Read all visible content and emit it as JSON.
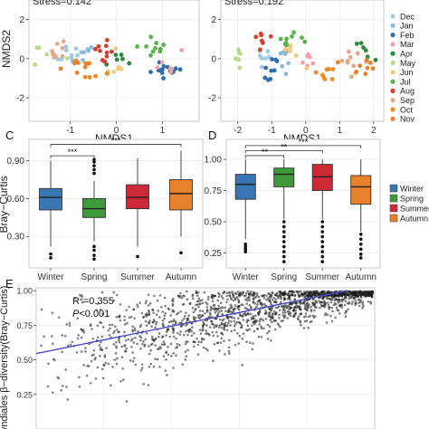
{
  "chart_data": [
    {
      "id": "A",
      "type": "scatter",
      "title": "Stress=0.142",
      "xlabel": "NMDS1",
      "ylabel": "NMDS2",
      "xticks": [
        "-1",
        "0",
        "1"
      ],
      "xtick_values": [
        -1,
        0,
        1
      ],
      "yticks": [
        "2",
        "0",
        "-2"
      ],
      "ytick_values": [
        2,
        0,
        -2
      ],
      "xlim": [
        -1.9,
        1.8
      ],
      "ylim": [
        -3.2,
        3.0
      ],
      "clusters": [
        {
          "month": "Dec",
          "x": -1.05,
          "y": 0.2,
          "n": 8
        },
        {
          "month": "Jan",
          "x": -0.8,
          "y": 0.25,
          "n": 8
        },
        {
          "month": "Feb",
          "x": 1.15,
          "y": -0.45,
          "n": 14
        },
        {
          "month": "Mar",
          "x": 1.05,
          "y": -0.2,
          "n": 6
        },
        {
          "month": "Apr",
          "x": 0.05,
          "y": -0.05,
          "n": 6
        },
        {
          "month": "May",
          "x": -1.45,
          "y": 0.05,
          "n": 5
        },
        {
          "month": "Jun",
          "x": -0.05,
          "y": -0.35,
          "n": 6
        },
        {
          "month": "Jul",
          "x": 0.85,
          "y": 0.6,
          "n": 10
        },
        {
          "month": "Aug",
          "x": -0.3,
          "y": 0.35,
          "n": 10
        },
        {
          "month": "Sep",
          "x": -1.25,
          "y": 0.25,
          "n": 9
        },
        {
          "month": "Oct",
          "x": -0.55,
          "y": -0.45,
          "n": 7
        },
        {
          "month": "Nov",
          "x": -0.85,
          "y": -0.3,
          "n": 7
        }
      ]
    },
    {
      "id": "B",
      "type": "scatter",
      "title": "Stress=0.192",
      "xlabel": "NMDS1",
      "ylabel": "",
      "xticks": [
        "-2",
        "-1",
        "0",
        "1",
        "2"
      ],
      "xtick_values": [
        -2,
        -1,
        0,
        1,
        2
      ],
      "yticks": [
        "2",
        "0",
        "-2"
      ],
      "ytick_values": [
        2,
        0,
        -2
      ],
      "xlim": [
        -2.5,
        2.3
      ],
      "ylim": [
        -3.2,
        3.0
      ],
      "clusters": [
        {
          "month": "Dec",
          "x": -1.3,
          "y": 0.1,
          "n": 7
        },
        {
          "month": "Jan",
          "x": -0.75,
          "y": 0.05,
          "n": 7
        },
        {
          "month": "Feb",
          "x": -1.05,
          "y": -0.65,
          "n": 9
        },
        {
          "month": "Mar",
          "x": 0.1,
          "y": -0.2,
          "n": 6
        },
        {
          "month": "Apr",
          "x": 1.7,
          "y": 0.35,
          "n": 6
        },
        {
          "month": "May",
          "x": -1.9,
          "y": 0.2,
          "n": 7
        },
        {
          "month": "Jun",
          "x": -0.35,
          "y": 0.35,
          "n": 6
        },
        {
          "month": "Jul",
          "x": -0.45,
          "y": 1.05,
          "n": 9
        },
        {
          "month": "Aug",
          "x": -1.35,
          "y": 0.85,
          "n": 8
        },
        {
          "month": "Sep",
          "x": 1.4,
          "y": -0.1,
          "n": 10
        },
        {
          "month": "Oct",
          "x": 0.55,
          "y": -0.55,
          "n": 9
        },
        {
          "month": "Nov",
          "x": 1.75,
          "y": -0.3,
          "n": 7
        }
      ]
    },
    {
      "id": "C",
      "type": "box",
      "ylabel": "Bray−Curtis",
      "categories": [
        "Winter",
        "Spring",
        "Summer",
        "Autumn"
      ],
      "yticks": [
        "0.90",
        "0.60",
        "0.30"
      ],
      "ytick_values": [
        0.9,
        0.6,
        0.3
      ],
      "ylim": [
        0.05,
        1.07
      ],
      "boxes": [
        {
          "min": 0.22,
          "q1": 0.51,
          "median": 0.61,
          "q3": 0.68,
          "max": 0.9,
          "outliers": [
            0.16,
            0.13
          ]
        },
        {
          "min": 0.26,
          "q1": 0.45,
          "median": 0.52,
          "q3": 0.6,
          "max": 0.74,
          "outliers": [
            0.91,
            0.89,
            0.86,
            0.83,
            0.8,
            0.22,
            0.19,
            0.15,
            0.12
          ]
        },
        {
          "min": 0.22,
          "q1": 0.52,
          "median": 0.61,
          "q3": 0.71,
          "max": 0.92,
          "outliers": [
            0.14
          ]
        },
        {
          "min": 0.3,
          "q1": 0.51,
          "median": 0.64,
          "q3": 0.75,
          "max": 0.98,
          "outliers": [
            0.17
          ]
        }
      ],
      "significance": [
        {
          "from": 0,
          "to": 3,
          "y": 1.03,
          "label": "***"
        },
        {
          "from": 0,
          "to": 1,
          "y": 0.94,
          "label": "***"
        }
      ]
    },
    {
      "id": "D",
      "type": "box",
      "ylabel": "",
      "categories": [
        "Winter",
        "Spring",
        "Summer",
        "Autumn"
      ],
      "yticks": [
        "1.00",
        "0.75",
        "0.50",
        "0.25"
      ],
      "ytick_values": [
        1.0,
        0.75,
        0.5,
        0.25
      ],
      "ylim": [
        0.13,
        1.16
      ],
      "legend": [
        "Winter",
        "Spring",
        "Summer",
        "Autumn"
      ],
      "boxes": [
        {
          "min": 0.36,
          "q1": 0.68,
          "median": 0.8,
          "q3": 0.88,
          "max": 1.0,
          "outliers": [
            0.32,
            0.3,
            0.28,
            0.26
          ]
        },
        {
          "min": 0.52,
          "q1": 0.78,
          "median": 0.88,
          "q3": 0.93,
          "max": 1.0,
          "outliers": [
            0.5,
            0.46,
            0.42,
            0.38,
            0.34,
            0.3,
            0.26,
            0.22,
            0.18
          ]
        },
        {
          "min": 0.52,
          "q1": 0.75,
          "median": 0.86,
          "q3": 0.96,
          "max": 1.0,
          "outliers": [
            0.5,
            0.46,
            0.42,
            0.38,
            0.34,
            0.3,
            0.26,
            0.22,
            0.18
          ]
        },
        {
          "min": 0.42,
          "q1": 0.64,
          "median": 0.78,
          "q3": 0.87,
          "max": 1.0,
          "outliers": [
            0.4,
            0.36,
            0.32,
            0.28,
            0.24,
            0.21
          ]
        }
      ],
      "significance": [
        {
          "from": 0,
          "to": 3,
          "y": 1.11,
          "label": "***"
        },
        {
          "from": 0,
          "to": 2,
          "y": 1.07,
          "label": "**"
        },
        {
          "from": 0,
          "to": 1,
          "y": 1.03,
          "label": "**"
        }
      ]
    },
    {
      "id": "E",
      "type": "scatter",
      "ylabel": "Syndiales β−diversity(Bray−Curtis)",
      "yticks": [
        "1.00",
        "0.75",
        "0.50",
        "0.25"
      ],
      "ytick_values": [
        1.0,
        0.75,
        0.5,
        0.25
      ],
      "ylim": [
        0.0,
        1.02
      ],
      "xlim": [
        0,
        1
      ],
      "r2_label": "R",
      "r2_exp": "2",
      "r2_value": "=0.355",
      "p_label": "P",
      "p_value": "<0.001",
      "fit": {
        "x0": 0.0,
        "y0": 0.545,
        "x1": 0.92,
        "y1": 1.0
      },
      "point_count": 1600
    }
  ],
  "panel_labels": [
    "C",
    "D",
    "E"
  ],
  "legend_months": [
    "Dec",
    "Jan",
    "Feb",
    "Mar",
    "Apr",
    "May",
    "Jun",
    "Jul",
    "Aug",
    "Sep",
    "Oct",
    "Nov"
  ],
  "month_colors": {
    "Dec": "#9ec9e2",
    "Jan": "#8bb9d9",
    "Feb": "#2f6fb0",
    "Mar": "#f2a2a6",
    "Apr": "#2b8a3e",
    "May": "#b7da8f",
    "Jun": "#f5ca7a",
    "Jul": "#59b24a",
    "Aug": "#d83e2f",
    "Sep": "#e3a98a",
    "Oct": "#ee8a22",
    "Nov": "#e8802c"
  },
  "season_colors": {
    "Winter": "#3a76b4",
    "Spring": "#3f9a3b",
    "Summer": "#cc2a36",
    "Autumn": "#e8812c"
  }
}
